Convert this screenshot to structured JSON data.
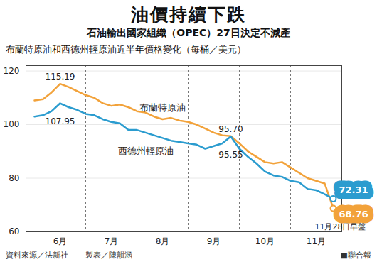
{
  "chart_data": {
    "type": "line",
    "title": "油價持續下跌",
    "subtitle": "石油輸出國家組織（OPEC）27日決定不減產",
    "y_label": "布蘭特原油和西德州輕原油近半年價格變化（每桶／美元）",
    "categories": [
      null,
      null,
      null,
      "6月",
      null,
      null,
      null,
      null,
      null,
      "7月",
      null,
      null,
      null,
      null,
      null,
      "8月",
      null,
      null,
      null,
      null,
      null,
      "9月",
      null,
      null,
      null,
      null,
      null,
      "10月",
      null,
      null,
      null,
      null,
      null,
      "11月",
      null,
      null
    ],
    "series": [
      {
        "name": "布蘭特原油",
        "color": "#f2a23a",
        "values": [
          109,
          109.5,
          112,
          115.19,
          114,
          112.5,
          111,
          110,
          108,
          107,
          107.5,
          106.5,
          105,
          104.5,
          103,
          102,
          102.5,
          101.5,
          101,
          100,
          98.5,
          97,
          96,
          95.7,
          93,
          90,
          88,
          86,
          85.5,
          86,
          84,
          82,
          80,
          79,
          78,
          68.76
        ],
        "value_labels": [
          null,
          null,
          null,
          "115.19",
          null,
          null,
          null,
          null,
          null,
          null,
          null,
          null,
          null,
          null,
          null,
          null,
          null,
          null,
          null,
          null,
          null,
          null,
          null,
          "95.70",
          null,
          null,
          null,
          null,
          null,
          null,
          null,
          null,
          null,
          null,
          null,
          "68.76"
        ]
      },
      {
        "name": "西德州輕原油",
        "color": "#2b9ccf",
        "values": [
          103,
          103.5,
          105,
          107.95,
          106.5,
          105.5,
          104,
          103.5,
          102,
          101,
          100.5,
          98,
          98,
          97,
          96,
          95,
          94,
          93.5,
          93,
          92.5,
          91,
          92,
          93,
          95.55,
          91,
          88,
          85.5,
          82.5,
          81,
          80.5,
          79,
          78.5,
          76,
          75.5,
          74,
          72.31
        ],
        "value_labels": [
          null,
          null,
          null,
          "107.95",
          null,
          null,
          null,
          null,
          null,
          null,
          null,
          null,
          null,
          null,
          null,
          null,
          null,
          null,
          null,
          null,
          null,
          null,
          null,
          "95.55",
          null,
          null,
          null,
          null,
          null,
          null,
          null,
          null,
          null,
          null,
          null,
          "72.31"
        ]
      }
    ],
    "ylim": [
      60,
      122
    ],
    "yticks": [
      60,
      80,
      100,
      120
    ],
    "grid": true,
    "annotations": [
      "11月28日早盤"
    ],
    "source": "資料來源／法新社",
    "credit": "製表／陳韻涵",
    "publisher": "■聯合報"
  }
}
